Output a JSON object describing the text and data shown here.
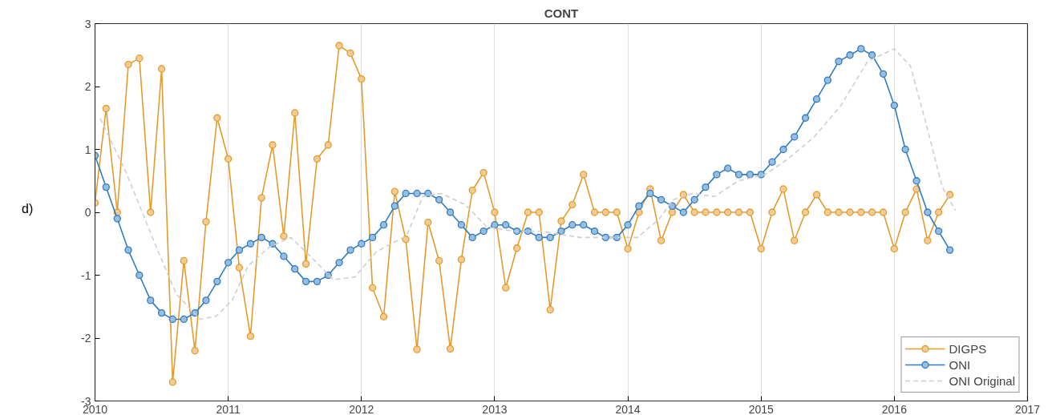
{
  "chart_data": {
    "type": "line",
    "title": "CONT",
    "x": [
      2010.0,
      2010.083,
      2010.167,
      2010.25,
      2010.333,
      2010.417,
      2010.5,
      2010.583,
      2010.667,
      2010.75,
      2010.833,
      2010.917,
      2011.0,
      2011.083,
      2011.167,
      2011.25,
      2011.333,
      2011.417,
      2011.5,
      2011.583,
      2011.667,
      2011.75,
      2011.833,
      2011.917,
      2012.0,
      2012.083,
      2012.167,
      2012.25,
      2012.333,
      2012.417,
      2012.5,
      2012.583,
      2012.667,
      2012.75,
      2012.833,
      2012.917,
      2013.0,
      2013.083,
      2013.167,
      2013.25,
      2013.333,
      2013.417,
      2013.5,
      2013.583,
      2013.667,
      2013.75,
      2013.833,
      2013.917,
      2014.0,
      2014.083,
      2014.167,
      2014.25,
      2014.333,
      2014.417,
      2014.5,
      2014.583,
      2014.667,
      2014.75,
      2014.833,
      2014.917,
      2015.0,
      2015.083,
      2015.167,
      2015.25,
      2015.333,
      2015.417,
      2015.5,
      2015.583,
      2015.667,
      2015.75,
      2015.833,
      2015.917,
      2016.0,
      2016.083,
      2016.167,
      2016.25,
      2016.333,
      2016.417
    ],
    "series": [
      {
        "name": "DIGPS",
        "color": "#e39b2b",
        "marker": "circle",
        "line_style": "solid",
        "values": [
          0.15,
          1.65,
          0.0,
          2.35,
          2.45,
          0.0,
          2.28,
          -2.7,
          -0.77,
          -2.2,
          -0.15,
          1.5,
          0.85,
          -0.88,
          -1.97,
          0.23,
          1.07,
          -0.38,
          1.58,
          -0.82,
          0.85,
          1.07,
          2.65,
          2.53,
          2.12,
          -1.2,
          -1.66,
          0.33,
          -0.43,
          -2.18,
          -0.16,
          -0.77,
          -2.17,
          -0.75,
          0.35,
          0.63,
          0.0,
          -1.2,
          -0.57,
          0.0,
          0.0,
          -1.55,
          -0.14,
          0.12,
          0.6,
          0.0,
          0.0,
          0.0,
          -0.58,
          0.0,
          0.37,
          -0.45,
          0.0,
          0.28,
          0.0,
          0.0,
          0.0,
          0.0,
          0.0,
          0.0,
          -0.58,
          0.0,
          0.37,
          -0.45,
          0.0,
          0.28,
          0.0,
          0.0,
          0.0,
          0.0,
          0.0,
          0.0,
          -0.58,
          0.0,
          0.37,
          -0.45,
          0.0,
          0.28
        ]
      },
      {
        "name": "ONI",
        "color": "#2f7cc0",
        "marker": "circle",
        "line_style": "solid",
        "values": [
          0.9,
          0.4,
          -0.1,
          -0.6,
          -1.0,
          -1.4,
          -1.6,
          -1.7,
          -1.7,
          -1.6,
          -1.4,
          -1.1,
          -0.8,
          -0.6,
          -0.5,
          -0.4,
          -0.5,
          -0.7,
          -0.9,
          -1.1,
          -1.1,
          -1.0,
          -0.8,
          -0.6,
          -0.5,
          -0.4,
          -0.2,
          0.1,
          0.3,
          0.3,
          0.3,
          0.2,
          0.0,
          -0.2,
          -0.4,
          -0.3,
          -0.2,
          -0.2,
          -0.3,
          -0.3,
          -0.4,
          -0.4,
          -0.3,
          -0.2,
          -0.2,
          -0.3,
          -0.4,
          -0.4,
          -0.2,
          0.1,
          0.3,
          0.2,
          0.1,
          0.0,
          0.2,
          0.4,
          0.6,
          0.7,
          0.6,
          0.6,
          0.6,
          0.8,
          1.0,
          1.2,
          1.5,
          1.8,
          2.1,
          2.4,
          2.5,
          2.6,
          2.5,
          2.2,
          1.7,
          1.0,
          0.5,
          0.0,
          -0.3,
          -0.6
        ]
      },
      {
        "name": "ONI Original",
        "color": "#cfcfcf",
        "marker": "none",
        "line_style": "dashed",
        "x": [
          2010.04,
          2010.23,
          2010.45,
          2010.61,
          2010.79,
          2010.91,
          2011.03,
          2011.15,
          2011.31,
          2011.47,
          2011.65,
          2011.79,
          2011.95,
          2012.11,
          2012.34,
          2012.46,
          2012.6,
          2012.78,
          2012.94,
          2013.14,
          2013.34,
          2013.64,
          2013.94,
          2014.07,
          2014.23,
          2014.34,
          2014.49,
          2014.65,
          2014.83,
          2015.03,
          2015.19,
          2015.4,
          2015.6,
          2015.8,
          2016.0,
          2016.12,
          2016.24,
          2016.36,
          2016.46
        ],
        "values": [
          1.49,
          0.65,
          -0.5,
          -1.3,
          -1.7,
          -1.65,
          -1.4,
          -0.85,
          -0.55,
          -0.4,
          -0.77,
          -1.07,
          -1.03,
          -0.63,
          -0.37,
          0.25,
          0.3,
          0.12,
          -0.23,
          -0.3,
          -0.3,
          -0.4,
          -0.4,
          -0.4,
          -0.12,
          0.2,
          0.3,
          0.25,
          0.5,
          0.6,
          0.83,
          1.2,
          1.7,
          2.4,
          2.6,
          2.33,
          1.4,
          0.4,
          0.03
        ]
      }
    ],
    "xlim": [
      2010,
      2017
    ],
    "xticks": [
      2010,
      2011,
      2012,
      2013,
      2014,
      2015,
      2016,
      2017
    ],
    "ylim": [
      -3,
      3
    ],
    "yticks": [
      -3,
      -2,
      -1,
      0,
      1,
      2,
      3
    ],
    "grid": "x",
    "legend": "bottom right",
    "annotations": [
      "d)"
    ]
  }
}
